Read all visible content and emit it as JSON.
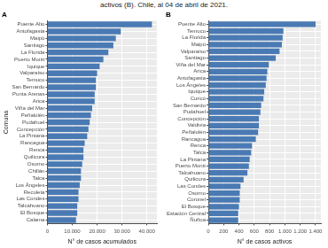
{
  "title": "activos (B). Chile, al 04 de abril de 2021.",
  "chart_data": [
    {
      "type": "bar",
      "title": "A",
      "orientation": "horizontal",
      "grid": true,
      "color": "#4a7ab4",
      "x_label": "N° de casos acumulados",
      "y_label": "Comuna",
      "categories": [
        "Puente Alto",
        "Antofagasta",
        "Maipú",
        "Santiago",
        "La Florida",
        "Puerto Montt",
        "Iquique",
        "Valparaíso",
        "Temuco",
        "San Bernardo",
        "Punta Arenas",
        "Arica",
        "Viña del Mar",
        "Peñalolén",
        "Pudahuel",
        "Concepción",
        "La Pintana",
        "Rancagua",
        "Renca",
        "Quilicura",
        "Osorno",
        "Chillán",
        "Talca",
        "Los Ángeles",
        "Recoleta",
        "Las Condes",
        "Talcahuano",
        "El Bosque",
        "Calama"
      ],
      "values": [
        42000,
        29500,
        27500,
        26500,
        24500,
        22500,
        21000,
        20000,
        19500,
        19500,
        19000,
        19000,
        18000,
        17500,
        17000,
        16500,
        16000,
        15000,
        14500,
        14500,
        14000,
        13500,
        13500,
        13000,
        12500,
        12500,
        12000,
        12000,
        11500
      ],
      "xlim": [
        0,
        44000
      ],
      "xticks": [
        0,
        {
          "value": 10000,
          "label": "10.000"
        },
        {
          "value": 20000,
          "label": "20.000"
        },
        {
          "value": 30000,
          "label": "30.000"
        },
        {
          "value": 40000,
          "label": "40.000"
        }
      ]
    },
    {
      "type": "bar",
      "title": "B",
      "orientation": "horizontal",
      "grid": true,
      "color": "#4a7ab4",
      "x_label": "N° de casos activos",
      "categories": [
        "Puente Alto",
        "Temuco",
        "La Florida",
        "Maipú",
        "Valparaíso",
        "Santiago",
        "Viña del Mar",
        "Arica",
        "Antofagasta",
        "Los Ángeles",
        "Iquique",
        "Curicó",
        "San Bernardo",
        "Pudahuel",
        "Concepción",
        "Valdivia",
        "Peñalolén",
        "Rancagua",
        "Renca",
        "Talca",
        "La Pintana",
        "Puerto Montt",
        "Talcahuano",
        "Quilicura",
        "Las Condes",
        "Osorno",
        "Coronel",
        "El Bosque",
        "Estación Central",
        "Ñuñoa"
      ],
      "values": [
        1400,
        980,
        970,
        960,
        930,
        880,
        790,
        770,
        760,
        750,
        730,
        720,
        690,
        680,
        660,
        660,
        650,
        620,
        570,
        560,
        540,
        530,
        510,
        460,
        420,
        410,
        410,
        400,
        390,
        390
      ],
      "xlim": [
        0,
        1470
      ],
      "xticks": [
        0,
        200,
        400,
        600,
        800,
        {
          "value": 1000,
          "label": "1.000"
        },
        {
          "value": 1200,
          "label": "1.200"
        },
        {
          "value": 1400,
          "label": "1.400"
        }
      ]
    }
  ]
}
